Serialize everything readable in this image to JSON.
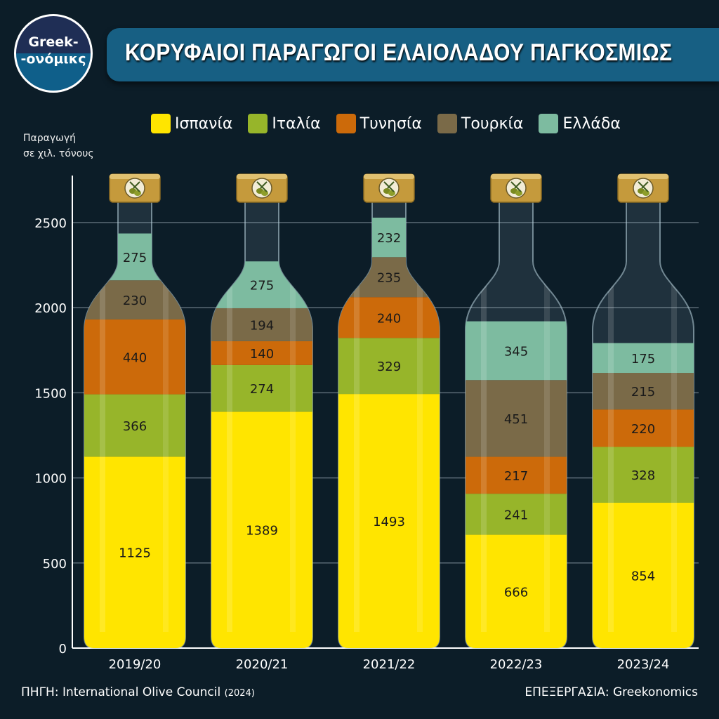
{
  "logo": {
    "line1": "Greek-",
    "line2": "-ονόμικς"
  },
  "title": "ΚΟΡΥΦΑΙΟΙ ΠΑΡΑΓΩΓΟΙ ΕΛΑΙΟΛΑΔΟΥ ΠΑΓΚΟΣΜΙΩΣ",
  "unit_label": {
    "line1": "Παραγωγή",
    "line2": "σε χιλ. τόνους"
  },
  "source": {
    "label": "ΠΗΓΗ: International Olive Council",
    "year": "(2024)"
  },
  "credit": "ΕΠΕΞΕΡΓΑΣΙΑ: Greekonomics",
  "chart_data": {
    "type": "bar",
    "stacked": true,
    "title": "ΚΟΡΥΦΑΙΟΙ ΠΑΡΑΓΩΓΟΙ ΕΛΑΙΟΛΑΔΟΥ ΠΑΓΚΟΣΜΙΩΣ",
    "ylabel": "Παραγωγή σε χιλ. τόνους",
    "xlabel": "",
    "ylim": [
      0,
      2750
    ],
    "yticks": [
      0,
      500,
      1000,
      1500,
      2000,
      2500
    ],
    "grid": true,
    "legend_position": "top",
    "categories": [
      "2019/20",
      "2020/21",
      "2021/22",
      "2022/23",
      "2023/24"
    ],
    "series": [
      {
        "name": "Ισπανία",
        "color": "#FFE500",
        "values": [
          1125,
          1389,
          1493,
          666,
          854
        ]
      },
      {
        "name": "Ιταλία",
        "color": "#97B52A",
        "values": [
          366,
          274,
          329,
          241,
          328
        ]
      },
      {
        "name": "Τυνησία",
        "color": "#CC6A0A",
        "values": [
          440,
          140,
          240,
          217,
          220
        ]
      },
      {
        "name": "Τουρκία",
        "color": "#7A6A48",
        "values": [
          230,
          194,
          235,
          451,
          215
        ]
      },
      {
        "name": "Ελλάδα",
        "color": "#7DBBA0",
        "values": [
          275,
          275,
          232,
          345,
          175
        ]
      }
    ]
  }
}
